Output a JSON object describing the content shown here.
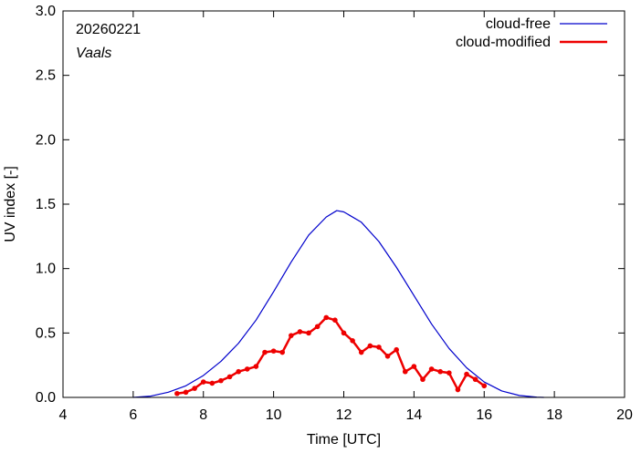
{
  "chart_data": {
    "type": "line",
    "title": "",
    "annotations": {
      "date": "20260221",
      "location": "Vaals"
    },
    "xlabel": "Time  [UTC]",
    "ylabel": "UV index  [-]",
    "xlim": [
      4,
      20
    ],
    "ylim": [
      0,
      3.0
    ],
    "xticks": [
      4,
      6,
      8,
      10,
      12,
      14,
      16,
      18,
      20
    ],
    "xtick_labels": [
      "4",
      "6",
      "8",
      "10",
      "12",
      "14",
      "16",
      "18",
      "20"
    ],
    "yticks": [
      0,
      0.5,
      1.0,
      1.5,
      2.0,
      2.5,
      3.0
    ],
    "ytick_labels": [
      "0.0",
      "0.5",
      "1.0",
      "1.5",
      "2.0",
      "2.5",
      "3.0"
    ],
    "grid": false,
    "legend_position": "top-right",
    "series": [
      {
        "name": "cloud-free",
        "color": "#0000cc",
        "markers": false,
        "x": [
          6.0,
          6.5,
          7.0,
          7.5,
          8.0,
          8.5,
          9.0,
          9.5,
          10.0,
          10.5,
          11.0,
          11.5,
          11.8,
          12.0,
          12.5,
          13.0,
          13.5,
          14.0,
          14.5,
          15.0,
          15.5,
          16.0,
          16.5,
          17.0,
          17.5,
          17.7
        ],
        "y": [
          0.0,
          0.01,
          0.04,
          0.09,
          0.17,
          0.28,
          0.42,
          0.6,
          0.82,
          1.05,
          1.26,
          1.4,
          1.45,
          1.44,
          1.36,
          1.21,
          1.01,
          0.79,
          0.57,
          0.38,
          0.23,
          0.12,
          0.05,
          0.015,
          0.002,
          0.0
        ]
      },
      {
        "name": "cloud-modified",
        "color": "#ee0000",
        "markers": true,
        "x": [
          7.25,
          7.5,
          7.75,
          8.0,
          8.25,
          8.5,
          8.75,
          9.0,
          9.25,
          9.5,
          9.75,
          10.0,
          10.25,
          10.5,
          10.75,
          11.0,
          11.25,
          11.5,
          11.75,
          12.0,
          12.25,
          12.5,
          12.75,
          13.0,
          13.25,
          13.5,
          13.75,
          14.0,
          14.25,
          14.5,
          14.75,
          15.0,
          15.25,
          15.5,
          15.75,
          16.0
        ],
        "y": [
          0.03,
          0.04,
          0.07,
          0.12,
          0.11,
          0.13,
          0.16,
          0.2,
          0.22,
          0.24,
          0.35,
          0.36,
          0.35,
          0.48,
          0.51,
          0.5,
          0.55,
          0.62,
          0.6,
          0.5,
          0.44,
          0.35,
          0.4,
          0.39,
          0.32,
          0.37,
          0.2,
          0.24,
          0.14,
          0.22,
          0.2,
          0.19,
          0.06,
          0.18,
          0.14,
          0.09
        ]
      }
    ]
  }
}
